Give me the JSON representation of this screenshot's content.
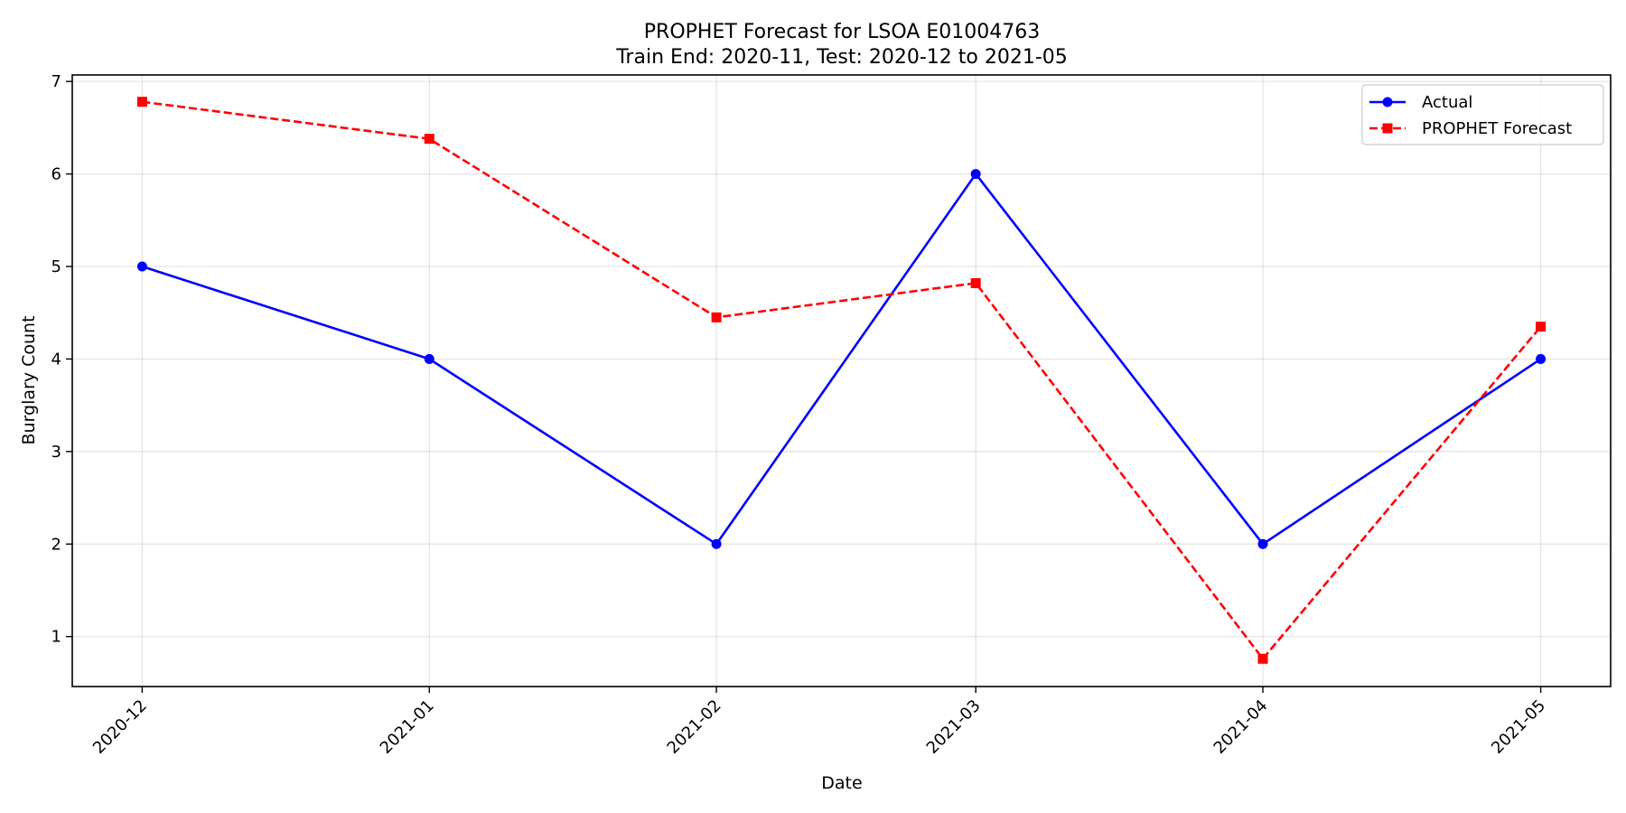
{
  "chart_data": {
    "type": "line",
    "title": "PROPHET Forecast for LSOA E01004763",
    "subtitle": "Train End: 2020-11, Test: 2020-12 to 2021-05",
    "xlabel": "Date",
    "ylabel": "Burglary Count",
    "x": [
      "2020-12",
      "2021-01",
      "2021-02",
      "2021-03",
      "2021-04",
      "2021-05"
    ],
    "x_days": [
      0,
      31,
      62,
      90,
      121,
      151
    ],
    "xlim_days": [
      -7.55,
      158.55
    ],
    "ylim": [
      0.46,
      7.07
    ],
    "yticks": [
      1,
      2,
      3,
      4,
      5,
      6,
      7
    ],
    "grid": true,
    "legend_position": "upper right",
    "series": [
      {
        "name": "Actual",
        "values": [
          5,
          4,
          2,
          6,
          2,
          4
        ],
        "color": "#0000ff",
        "line_style": "solid",
        "marker": "circle"
      },
      {
        "name": "PROPHET Forecast",
        "values": [
          6.78,
          6.38,
          4.45,
          4.82,
          0.76,
          4.35
        ],
        "color": "#ff0000",
        "line_style": "dashed",
        "marker": "square"
      }
    ]
  }
}
